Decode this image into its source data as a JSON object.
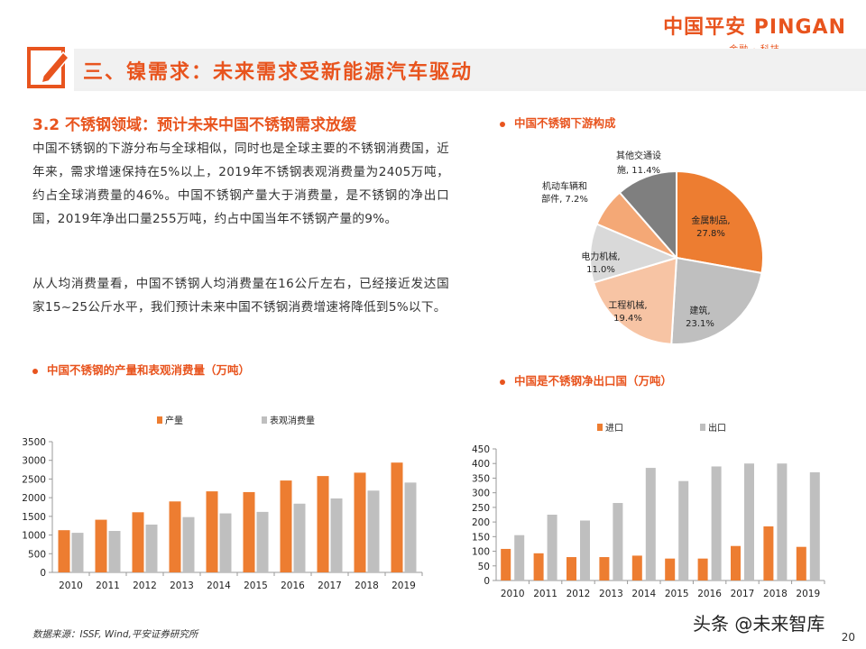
{
  "header": {
    "brand": "中国平安 PINGAN",
    "brand_sub": "金融 · 科技",
    "title": "三、镍需求：未来需求受新能源汽车驱动"
  },
  "section": {
    "title": "3.2  不锈钢领域：预计未来中国不锈钢需求放缓",
    "para1": "中国不锈钢的下游分布与全球相似，同时也是全球主要的不锈钢消费国，近年来，需求增速保持在5%以上，2019年不锈钢表观消费量为2405万吨，约占全球消费量的46%。中国不锈钢产量大于消费量，是不锈钢的净出口国，2019年净出口量255万吨，约占中国当年不锈钢产量的9%。",
    "para2": "从人均消费量看，中国不锈钢人均消费量在16公斤左右，已经接近发达国家15~25公斤水平，我们预计未来中国不锈钢消费增速将降低到5%以下。"
  },
  "footer": {
    "source": "数据来源：ISSF, Wind,平安证券研究所",
    "page": "20",
    "watermark": "头条 @未来智库"
  },
  "colors": {
    "orange": "#ed7d31",
    "gray": "#bfbfbf",
    "accent": "#e8541e"
  },
  "chart_data": [
    {
      "type": "pie",
      "title": "中国不锈钢下游构成",
      "slices": [
        {
          "label": "金属制品,",
          "pct": "27.8%",
          "value": 27.8,
          "color": "#ed7d31"
        },
        {
          "label": "建筑,",
          "pct": "23.1%",
          "value": 23.1,
          "color": "#bfbfbf"
        },
        {
          "label": "工程机械,",
          "pct": "19.4%",
          "value": 19.4,
          "color": "#f7c4a4"
        },
        {
          "label": "电力机械,",
          "pct": "11.0%",
          "value": 11.0,
          "color": "#d9d9d9"
        },
        {
          "label": "机动车辆和部件,",
          "pct": "7.2%",
          "value": 7.2,
          "color": "#f4a876"
        },
        {
          "label": "其他交通设施,",
          "pct": "11.4%",
          "value": 11.4,
          "color": "#7f7f7f"
        }
      ]
    },
    {
      "type": "bar",
      "title": "中国不锈钢的产量和表观消费量（万吨）",
      "categories": [
        "2010",
        "2011",
        "2012",
        "2013",
        "2014",
        "2015",
        "2016",
        "2017",
        "2018",
        "2019"
      ],
      "series": [
        {
          "name": "产量",
          "values": [
            1130,
            1410,
            1610,
            1900,
            2170,
            2150,
            2460,
            2580,
            2670,
            2940
          ],
          "color": "#ed7d31"
        },
        {
          "name": "表观消费量",
          "values": [
            1060,
            1110,
            1280,
            1480,
            1580,
            1620,
            1840,
            1980,
            2190,
            2405
          ],
          "color": "#bfbfbf"
        }
      ],
      "ylim": [
        0,
        3500
      ],
      "yticks": [
        0,
        500,
        1000,
        1500,
        2000,
        2500,
        3000,
        3500
      ]
    },
    {
      "type": "bar",
      "title": "中国是不锈钢净出口国（万吨）",
      "categories": [
        "2010",
        "2011",
        "2012",
        "2013",
        "2014",
        "2015",
        "2016",
        "2017",
        "2018",
        "2019"
      ],
      "series": [
        {
          "name": "进口",
          "values": [
            108,
            93,
            80,
            80,
            85,
            75,
            75,
            118,
            185,
            115
          ],
          "color": "#ed7d31"
        },
        {
          "name": "出口",
          "values": [
            155,
            225,
            205,
            265,
            385,
            340,
            390,
            400,
            400,
            370
          ],
          "color": "#bfbfbf"
        }
      ],
      "ylim": [
        0,
        450
      ],
      "yticks": [
        0,
        50,
        100,
        150,
        200,
        250,
        300,
        350,
        400,
        450
      ]
    }
  ]
}
